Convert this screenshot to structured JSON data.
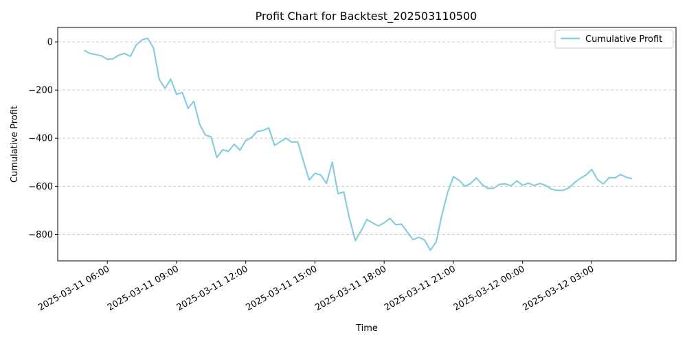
{
  "chart_data": {
    "type": "line",
    "title": "Profit Chart for Backtest_202503110500",
    "xlabel": "Time",
    "ylabel": "Cumulative Profit",
    "ylim": [
      -910,
      60
    ],
    "xlim": [
      "2025-03-11 03:51",
      "2025-03-12 06:39"
    ],
    "yticks": [
      0,
      -200,
      -400,
      -600,
      -800
    ],
    "xticks": [
      "2025-03-11 06:00",
      "2025-03-11 09:00",
      "2025-03-11 12:00",
      "2025-03-11 15:00",
      "2025-03-11 18:00",
      "2025-03-11 21:00",
      "2025-03-12 00:00",
      "2025-03-12 03:00"
    ],
    "grid": {
      "y": true,
      "x": false,
      "style": "dashed"
    },
    "legend_position": "top-right",
    "series": [
      {
        "name": "Cumulative Profit",
        "color": "#87cde0",
        "x": [
          "2025-03-11 05:00",
          "2025-03-11 05:15",
          "2025-03-11 05:30",
          "2025-03-11 05:45",
          "2025-03-11 06:00",
          "2025-03-11 06:15",
          "2025-03-11 06:30",
          "2025-03-11 06:45",
          "2025-03-11 07:00",
          "2025-03-11 07:15",
          "2025-03-11 07:30",
          "2025-03-11 07:45",
          "2025-03-11 08:00",
          "2025-03-11 08:15",
          "2025-03-11 08:30",
          "2025-03-11 08:45",
          "2025-03-11 09:00",
          "2025-03-11 09:15",
          "2025-03-11 09:30",
          "2025-03-11 09:45",
          "2025-03-11 10:00",
          "2025-03-11 10:15",
          "2025-03-11 10:30",
          "2025-03-11 10:45",
          "2025-03-11 11:00",
          "2025-03-11 11:15",
          "2025-03-11 11:30",
          "2025-03-11 11:45",
          "2025-03-11 12:00",
          "2025-03-11 12:15",
          "2025-03-11 12:30",
          "2025-03-11 12:45",
          "2025-03-11 13:00",
          "2025-03-11 13:15",
          "2025-03-11 13:30",
          "2025-03-11 13:45",
          "2025-03-11 14:00",
          "2025-03-11 14:15",
          "2025-03-11 14:30",
          "2025-03-11 14:45",
          "2025-03-11 15:00",
          "2025-03-11 15:15",
          "2025-03-11 15:30",
          "2025-03-11 15:45",
          "2025-03-11 16:00",
          "2025-03-11 16:15",
          "2025-03-11 16:30",
          "2025-03-11 16:45",
          "2025-03-11 17:00",
          "2025-03-11 17:15",
          "2025-03-11 17:30",
          "2025-03-11 17:45",
          "2025-03-11 18:00",
          "2025-03-11 18:15",
          "2025-03-11 18:30",
          "2025-03-11 18:45",
          "2025-03-11 19:00",
          "2025-03-11 19:15",
          "2025-03-11 19:30",
          "2025-03-11 19:45",
          "2025-03-11 20:00",
          "2025-03-11 20:15",
          "2025-03-11 20:30",
          "2025-03-11 20:45",
          "2025-03-11 21:00",
          "2025-03-11 21:15",
          "2025-03-11 21:30",
          "2025-03-11 21:45",
          "2025-03-11 22:00",
          "2025-03-11 22:15",
          "2025-03-11 22:30",
          "2025-03-11 22:45",
          "2025-03-11 23:00",
          "2025-03-11 23:15",
          "2025-03-11 23:30",
          "2025-03-11 23:45",
          "2025-03-12 00:00",
          "2025-03-12 00:15",
          "2025-03-12 00:30",
          "2025-03-12 00:45",
          "2025-03-12 01:00",
          "2025-03-12 01:15",
          "2025-03-12 01:30",
          "2025-03-12 01:45",
          "2025-03-12 02:00",
          "2025-03-12 02:15",
          "2025-03-12 02:30",
          "2025-03-12 02:45",
          "2025-03-12 03:00",
          "2025-03-12 03:15",
          "2025-03-12 03:30",
          "2025-03-12 03:45",
          "2025-03-12 04:00",
          "2025-03-12 04:15",
          "2025-03-12 04:30",
          "2025-03-12 04:45"
        ],
        "y": [
          -35,
          -48,
          -53,
          -58,
          -72,
          -70,
          -55,
          -48,
          -60,
          -13,
          8,
          15,
          -25,
          -155,
          -193,
          -155,
          -218,
          -210,
          -276,
          -247,
          -342,
          -387,
          -395,
          -480,
          -448,
          -455,
          -425,
          -450,
          -410,
          -398,
          -372,
          -368,
          -357,
          -430,
          -415,
          -400,
          -417,
          -415,
          -495,
          -574,
          -546,
          -553,
          -588,
          -500,
          -631,
          -624,
          -735,
          -826,
          -785,
          -738,
          -752,
          -765,
          -752,
          -733,
          -760,
          -757,
          -790,
          -822,
          -812,
          -823,
          -866,
          -832,
          -720,
          -627,
          -560,
          -575,
          -600,
          -588,
          -565,
          -593,
          -609,
          -608,
          -592,
          -590,
          -598,
          -577,
          -596,
          -587,
          -597,
          -588,
          -596,
          -612,
          -617,
          -617,
          -607,
          -585,
          -567,
          -553,
          -530,
          -573,
          -590,
          -564,
          -565,
          -551,
          -563,
          -568
        ]
      }
    ]
  }
}
